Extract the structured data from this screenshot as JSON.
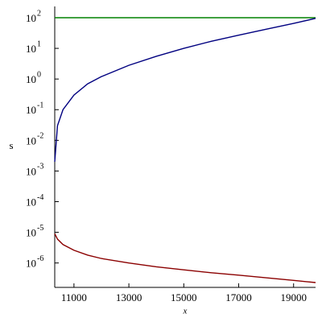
{
  "chart_data": {
    "type": "line",
    "ylog": true,
    "x_label": "x",
    "y_label": "s",
    "x": [
      10300,
      10400,
      10600,
      11000,
      11500,
      12000,
      13000,
      14000,
      15000,
      16000,
      17000,
      18000,
      19000,
      19800
    ],
    "series": [
      {
        "color": "#008000",
        "values": [
          100,
          100,
          100,
          100,
          100,
          100,
          100,
          100,
          100,
          100,
          100,
          100,
          100,
          100
        ]
      },
      {
        "color": "#000080",
        "values": [
          0.002,
          0.03,
          0.1,
          0.3,
          0.7,
          1.2,
          2.8,
          5.5,
          10,
          17,
          27,
          42,
          65,
          95
        ]
      },
      {
        "color": "#8b0000",
        "values": [
          9e-06,
          6e-06,
          4e-06,
          2.6e-06,
          1.8e-06,
          1.4e-06,
          1e-06,
          7.5e-07,
          6e-07,
          4.8e-07,
          4e-07,
          3.3e-07,
          2.7e-07,
          2.3e-07
        ]
      }
    ],
    "xlim": [
      10300,
      19800
    ],
    "xticks": [
      11000,
      13000,
      15000,
      17000,
      19000
    ],
    "ylim": [
      1.6e-07,
      233
    ],
    "yticks": [
      {
        "value": 1e-06,
        "label": "10",
        "exponent": "-6"
      },
      {
        "value": 1e-05,
        "label": "10",
        "exponent": "-5"
      },
      {
        "value": 0.0001,
        "label": "10",
        "exponent": "-4"
      },
      {
        "value": 0.001,
        "label": "10",
        "exponent": "-3"
      },
      {
        "value": 0.01,
        "label": "10",
        "exponent": "-2"
      },
      {
        "value": 0.1,
        "label": "10",
        "exponent": "-1"
      },
      {
        "value": 1,
        "label": "10",
        "exponent": "0"
      },
      {
        "value": 10,
        "label": "10",
        "exponent": "1"
      },
      {
        "value": 100,
        "label": "10",
        "exponent": "2"
      }
    ]
  }
}
